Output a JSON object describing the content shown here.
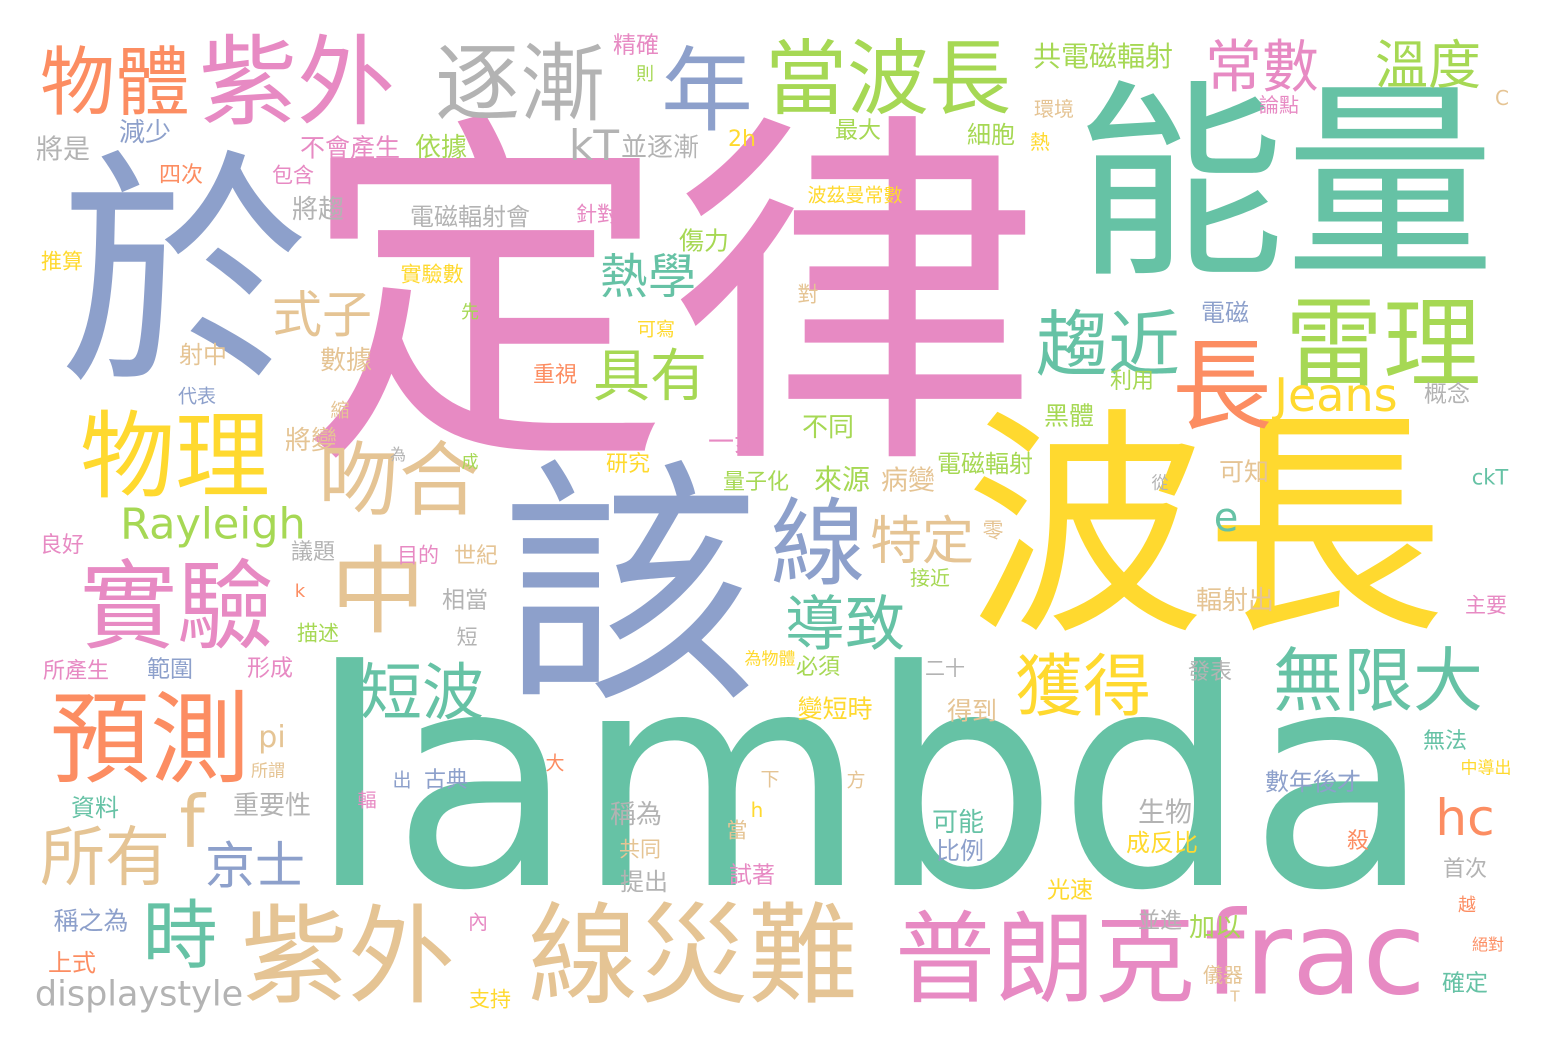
{
  "palette": {
    "teal": "#66c2a5",
    "orange": "#fc8d62",
    "blue": "#8da0cb",
    "pink": "#e78ac3",
    "lime": "#a6d854",
    "yellow": "#ffd92f",
    "tan": "#e5c494",
    "gray": "#b3b3b3",
    "background": "#ffffff"
  },
  "words": [
    {
      "text": "定律",
      "color": "#e78ac3"
    },
    {
      "text": "lambda",
      "color": "#66c2a5"
    },
    {
      "text": "能量",
      "color": "#66c2a5"
    },
    {
      "text": "波長",
      "color": "#ffd92f"
    },
    {
      "text": "於",
      "color": "#8da0cb"
    },
    {
      "text": "該",
      "color": "#8da0cb"
    },
    {
      "text": "線災難",
      "color": "#e5c494"
    },
    {
      "text": "紫外",
      "color": "#e5c494"
    },
    {
      "text": "普朗克",
      "color": "#e78ac3"
    },
    {
      "text": "frac",
      "color": "#e78ac3"
    },
    {
      "text": "預測",
      "color": "#fc8d62"
    },
    {
      "text": "長",
      "color": "#fc8d62"
    },
    {
      "text": "紫外",
      "color": "#e78ac3"
    },
    {
      "text": "雷理",
      "color": "#a6d854"
    },
    {
      "text": "實驗",
      "color": "#e78ac3"
    },
    {
      "text": "物理",
      "color": "#ffd92f"
    },
    {
      "text": "中",
      "color": "#e5c494"
    },
    {
      "text": "線",
      "color": "#8da0cb"
    },
    {
      "text": "年",
      "color": "#8da0cb"
    },
    {
      "text": "逐漸",
      "color": "#b3b3b3"
    },
    {
      "text": "當波長",
      "color": "#a6d854"
    },
    {
      "text": "吻合",
      "color": "#e5c494"
    },
    {
      "text": "物體",
      "color": "#fc8d62"
    },
    {
      "text": "時",
      "color": "#66c2a5"
    },
    {
      "text": "趨近",
      "color": "#66c2a5"
    },
    {
      "text": "f",
      "color": "#e5c494"
    },
    {
      "text": "無限大",
      "color": "#66c2a5"
    },
    {
      "text": "獲得",
      "color": "#ffd92f"
    },
    {
      "text": "所有",
      "color": "#e5c494"
    },
    {
      "text": "短波",
      "color": "#66c2a5"
    },
    {
      "text": "導致",
      "color": "#66c2a5"
    },
    {
      "text": "具有",
      "color": "#a6d854"
    },
    {
      "text": "常數",
      "color": "#e78ac3"
    },
    {
      "text": "溫度",
      "color": "#a6d854"
    },
    {
      "text": "特定",
      "color": "#e5c494"
    },
    {
      "text": "京士",
      "color": "#8da0cb"
    },
    {
      "text": "式子",
      "color": "#e5c494"
    },
    {
      "text": "hc",
      "color": "#fc8d62"
    },
    {
      "text": "熱學",
      "color": "#66c2a5"
    },
    {
      "text": "Jeans",
      "color": "#ffd92f"
    },
    {
      "text": "Rayleigh",
      "color": "#a6d854"
    },
    {
      "text": "kT",
      "color": "#b3b3b3"
    },
    {
      "text": "e",
      "color": "#66c2a5"
    },
    {
      "text": "displaystyle",
      "color": "#b3b3b3"
    },
    {
      "text": "pi",
      "color": "#e5c494"
    },
    {
      "text": "共電磁輻射",
      "color": "#a6d854"
    },
    {
      "text": "來源",
      "color": "#a6d854"
    },
    {
      "text": "將是",
      "color": "#b3b3b3"
    },
    {
      "text": "病變",
      "color": "#e5c494"
    },
    {
      "text": "生物",
      "color": "#b3b3b3"
    },
    {
      "text": "並逐漸",
      "color": "#b3b3b3"
    },
    {
      "text": "減少",
      "color": "#8da0cb"
    },
    {
      "text": "依據",
      "color": "#a6d854"
    },
    {
      "text": "將趨",
      "color": "#b3b3b3"
    },
    {
      "text": "數據",
      "color": "#e5c494"
    },
    {
      "text": "將變",
      "color": "#e5c494"
    },
    {
      "text": "一步",
      "color": "#e78ac3"
    },
    {
      "text": "不同",
      "color": "#a6d854"
    },
    {
      "text": "輻射出",
      "color": "#e5c494"
    },
    {
      "text": "可能",
      "color": "#66c2a5"
    },
    {
      "text": "加以",
      "color": "#a6d854"
    },
    {
      "text": "重要性",
      "color": "#b3b3b3"
    },
    {
      "text": "稱為",
      "color": "#b3b3b3"
    },
    {
      "text": "不會產生",
      "color": "#e78ac3"
    },
    {
      "text": "傷力",
      "color": "#a6d854"
    },
    {
      "text": "黑體",
      "color": "#a6d854"
    },
    {
      "text": "變短時",
      "color": "#ffd92f"
    },
    {
      "text": "得到",
      "color": "#e5c494"
    },
    {
      "text": "可知",
      "color": "#e5c494"
    },
    {
      "text": "稱之為",
      "color": "#8da0cb"
    },
    {
      "text": "射中",
      "color": "#e5c494"
    },
    {
      "text": "電磁輻射會",
      "color": "#b3b3b3"
    },
    {
      "text": "電磁輻射",
      "color": "#a6d854"
    },
    {
      "text": "數年後才",
      "color": "#8da0cb"
    },
    {
      "text": "成反比",
      "color": "#ffd92f"
    },
    {
      "text": "比例",
      "color": "#8da0cb"
    },
    {
      "text": "資料",
      "color": "#66c2a5"
    },
    {
      "text": "提出",
      "color": "#b3b3b3"
    },
    {
      "text": "上式",
      "color": "#fc8d62"
    },
    {
      "text": "細胞",
      "color": "#a6d854"
    },
    {
      "text": "電磁",
      "color": "#8da0cb"
    },
    {
      "text": "精確",
      "color": "#e78ac3"
    },
    {
      "text": "最大",
      "color": "#a6d854"
    },
    {
      "text": "概念",
      "color": "#b3b3b3"
    },
    {
      "text": "相當",
      "color": "#b3b3b3"
    },
    {
      "text": "試著",
      "color": "#e78ac3"
    },
    {
      "text": "確定",
      "color": "#66c2a5"
    },
    {
      "text": "光速",
      "color": "#ffd92f"
    },
    {
      "text": "範圍",
      "color": "#8da0cb"
    },
    {
      "text": "形成",
      "color": "#e78ac3"
    },
    {
      "text": "四次",
      "color": "#fc8d62"
    },
    {
      "text": "研究",
      "color": "#ffd92f"
    },
    {
      "text": "量子化",
      "color": "#a6d854"
    },
    {
      "text": "利用",
      "color": "#a6d854"
    },
    {
      "text": "重視",
      "color": "#fc8d62"
    },
    {
      "text": "良好",
      "color": "#e78ac3"
    },
    {
      "text": "議題",
      "color": "#b3b3b3"
    },
    {
      "text": "世紀",
      "color": "#e5c494"
    },
    {
      "text": "必須",
      "color": "#a6d854"
    },
    {
      "text": "發表",
      "color": "#b3b3b3"
    },
    {
      "text": "無法",
      "color": "#66c2a5"
    },
    {
      "text": "殺",
      "color": "#fc8d62"
    },
    {
      "text": "首次",
      "color": "#b3b3b3"
    },
    {
      "text": "並進",
      "color": "#b3b3b3"
    },
    {
      "text": "古典",
      "color": "#8da0cb"
    },
    {
      "text": "所產生",
      "color": "#e78ac3"
    },
    {
      "text": "2h",
      "color": "#ffd92f"
    },
    {
      "text": "包含",
      "color": "#e78ac3"
    },
    {
      "text": "針對",
      "color": "#e78ac3"
    },
    {
      "text": "推算",
      "color": "#ffd92f"
    },
    {
      "text": "實驗數",
      "color": "#ffd92f"
    },
    {
      "text": "對",
      "color": "#e5c494"
    },
    {
      "text": "目的",
      "color": "#e78ac3"
    },
    {
      "text": "短",
      "color": "#b3b3b3"
    },
    {
      "text": "描述",
      "color": "#a6d854"
    },
    {
      "text": "零",
      "color": "#e5c494"
    },
    {
      "text": "主要",
      "color": "#e78ac3"
    },
    {
      "text": "ckT",
      "color": "#66c2a5"
    },
    {
      "text": "當",
      "color": "#e5c494"
    },
    {
      "text": "共同",
      "color": "#e5c494"
    },
    {
      "text": "支持",
      "color": "#ffd92f"
    },
    {
      "text": "接近",
      "color": "#a6d854"
    },
    {
      "text": "二十",
      "color": "#b3b3b3"
    },
    {
      "text": "儀器",
      "color": "#e5c494"
    },
    {
      "text": "h",
      "color": "#ffd92f"
    },
    {
      "text": "內",
      "color": "#e78ac3"
    },
    {
      "text": "C",
      "color": "#e5c494"
    },
    {
      "text": "論點",
      "color": "#e78ac3"
    },
    {
      "text": "環境",
      "color": "#e5c494"
    },
    {
      "text": "熱",
      "color": "#ffd92f"
    },
    {
      "text": "波茲曼常數",
      "color": "#ffd92f"
    },
    {
      "text": "可寫",
      "color": "#ffd92f"
    },
    {
      "text": "代表",
      "color": "#8da0cb"
    },
    {
      "text": "縮",
      "color": "#e5c494"
    },
    {
      "text": "下",
      "color": "#e5c494"
    },
    {
      "text": "方",
      "color": "#e5c494"
    },
    {
      "text": "大",
      "color": "#fc8d62"
    },
    {
      "text": "出",
      "color": "#8da0cb"
    },
    {
      "text": "輻",
      "color": "#e78ac3"
    },
    {
      "text": "先",
      "color": "#a6d854"
    },
    {
      "text": "k",
      "color": "#fc8d62"
    },
    {
      "text": "越",
      "color": "#fc8d62"
    },
    {
      "text": "則",
      "color": "#a6d854"
    },
    {
      "text": "成",
      "color": "#a6d854"
    },
    {
      "text": "從",
      "color": "#b3b3b3"
    },
    {
      "text": "中導出",
      "color": "#ffd92f"
    },
    {
      "text": "為物體",
      "color": "#ffd92f"
    },
    {
      "text": "所謂",
      "color": "#e5c494"
    },
    {
      "text": "為",
      "color": "#b3b3b3"
    },
    {
      "text": "絕對",
      "color": "#fc8d62"
    },
    {
      "text": "T",
      "color": "#e5c494"
    }
  ]
}
